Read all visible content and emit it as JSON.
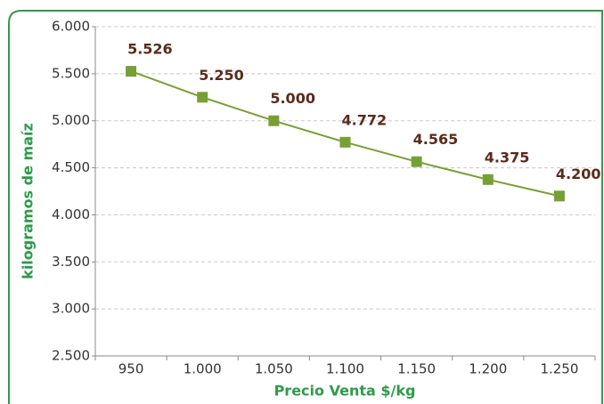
{
  "chart_data": {
    "type": "line",
    "x_label": "Precio Venta $/kg",
    "y_label": "kilogramos de maíz",
    "categories": [
      "950",
      "1.000",
      "1.050",
      "1.100",
      "1.150",
      "1.200",
      "1.250"
    ],
    "series": [
      {
        "color": "#76a033",
        "values": [
          5526,
          5250,
          5000,
          4772,
          4565,
          4375,
          4200
        ],
        "value_labels": [
          "5.526",
          "5.250",
          "5.000",
          "4.772",
          "4.565",
          "4.375",
          "4.200"
        ]
      }
    ],
    "ylim": [
      2500,
      6000
    ],
    "yticks": [
      {
        "value": 2500,
        "label": "2.500"
      },
      {
        "value": 3000,
        "label": "3.000"
      },
      {
        "value": 3500,
        "label": "3.500"
      },
      {
        "value": 4000,
        "label": "4.000"
      },
      {
        "value": 4500,
        "label": "4.500"
      },
      {
        "value": 5000,
        "label": "5.000"
      },
      {
        "value": 5500,
        "label": "5.500"
      },
      {
        "value": 6000,
        "label": "6.000"
      }
    ],
    "grid": true
  }
}
